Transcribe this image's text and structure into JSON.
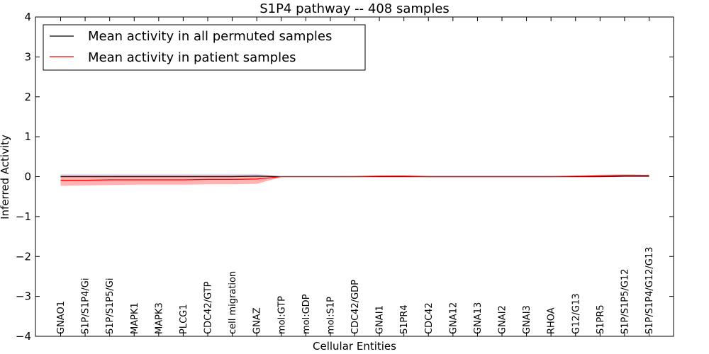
{
  "chart_data": {
    "type": "line",
    "title": "S1P4 pathway -- 408 samples",
    "xlabel": "Cellular Entities",
    "ylabel": "Inferred Activity",
    "ylim": [
      -4,
      4
    ],
    "yticks": [
      4,
      3,
      2,
      1,
      0,
      -1,
      -2,
      -3,
      -4
    ],
    "ytick_labels": [
      "4",
      "3",
      "2",
      "1",
      "0",
      "−1",
      "−2",
      "−3",
      "−4"
    ],
    "grid": false,
    "legend_position": "top-left",
    "categories": [
      "GNAO1",
      "S1P/S1P4/Gi",
      "S1P/S1P5/Gi",
      "MAPK1",
      "MAPK3",
      "PLCG1",
      "CDC42/GTP",
      "cell migration",
      "GNAZ",
      "mol:GTP",
      "mol:GDP",
      "mol:S1P",
      "CDC42/GDP",
      "GNAI1",
      "S1PR4",
      "CDC42",
      "GNA12",
      "GNA13",
      "GNAI2",
      "GNAI3",
      "RHOA",
      "G12/G13",
      "S1PR5",
      "S1P/S1P5/G12",
      "S1P/S1P4/G12/G13"
    ],
    "series": [
      {
        "name": "Mean activity in all permuted samples",
        "color": "#000000",
        "values": [
          0.0,
          0.0,
          0.0,
          0.0,
          0.0,
          0.0,
          0.0,
          0.0,
          0.01,
          0.0,
          0.0,
          0.0,
          0.0,
          0.0,
          0.0,
          0.0,
          0.0,
          0.0,
          0.0,
          0.0,
          0.0,
          0.0,
          0.0,
          0.01,
          0.01
        ],
        "band_upper": [
          0.07,
          0.07,
          0.07,
          0.07,
          0.07,
          0.07,
          0.07,
          0.07,
          0.07,
          0.01,
          0.01,
          0.01,
          0.01,
          0.01,
          0.01,
          0.01,
          0.01,
          0.01,
          0.01,
          0.01,
          0.01,
          0.01,
          0.01,
          0.02,
          0.03
        ],
        "band_lower": [
          -0.03,
          -0.03,
          -0.03,
          -0.03,
          -0.03,
          -0.03,
          -0.03,
          -0.03,
          -0.03,
          -0.01,
          -0.01,
          -0.01,
          -0.01,
          -0.02,
          -0.02,
          -0.02,
          -0.02,
          -0.02,
          -0.02,
          -0.02,
          -0.02,
          -0.02,
          -0.02,
          -0.01,
          -0.01
        ]
      },
      {
        "name": "Mean activity in patient samples",
        "color": "#ff0000",
        "band_color": "#ff9999",
        "values": [
          -0.09,
          -0.09,
          -0.08,
          -0.08,
          -0.08,
          -0.08,
          -0.07,
          -0.07,
          -0.06,
          0.0,
          0.0,
          0.0,
          0.0,
          0.01,
          0.01,
          0.0,
          0.0,
          0.0,
          0.0,
          0.0,
          0.0,
          0.01,
          0.02,
          0.03,
          0.03
        ],
        "band_upper": [
          0.04,
          0.04,
          0.04,
          0.04,
          0.04,
          0.04,
          0.04,
          0.04,
          0.05,
          0.01,
          0.01,
          0.01,
          0.02,
          0.03,
          0.04,
          0.02,
          0.02,
          0.02,
          0.02,
          0.02,
          0.02,
          0.02,
          0.05,
          0.06,
          0.05
        ],
        "band_lower": [
          -0.23,
          -0.22,
          -0.21,
          -0.2,
          -0.2,
          -0.2,
          -0.19,
          -0.19,
          -0.18,
          -0.01,
          -0.01,
          -0.01,
          -0.01,
          -0.01,
          -0.01,
          -0.01,
          -0.01,
          -0.01,
          -0.01,
          -0.01,
          -0.01,
          -0.01,
          -0.01,
          0.0,
          0.0
        ]
      }
    ]
  }
}
